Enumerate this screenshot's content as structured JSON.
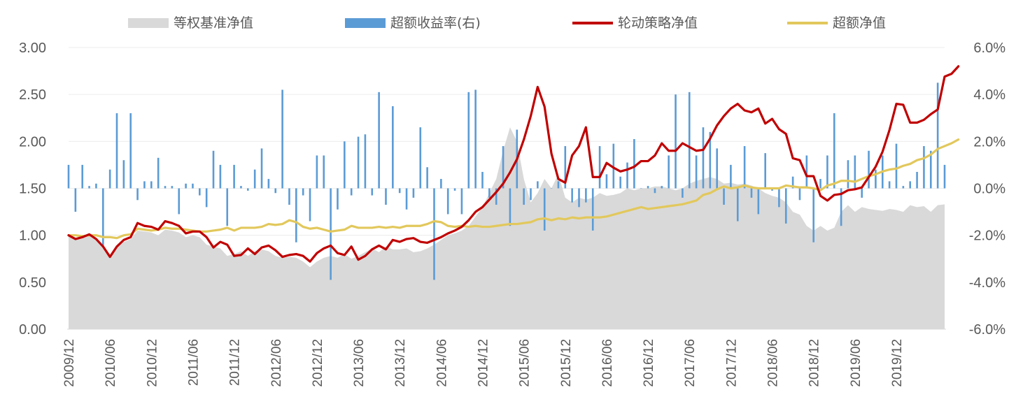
{
  "chart_data": {
    "type": "combo",
    "legend": [
      {
        "name": "等权基准净值",
        "kind": "area",
        "color": "#d9d9d9"
      },
      {
        "name": "超额收益率(右)",
        "kind": "bar",
        "color": "#5b9bd5"
      },
      {
        "name": "轮动策略净值",
        "kind": "line",
        "color": "#c00000"
      },
      {
        "name": "超额净值",
        "kind": "line",
        "color": "#e2c85c"
      }
    ],
    "legend_position": "top",
    "y_left": {
      "min": 0,
      "max": 3,
      "ticks": [
        "0.00",
        "0.50",
        "1.00",
        "1.50",
        "2.00",
        "2.50",
        "3.00"
      ]
    },
    "y_right": {
      "min": -6,
      "max": 6,
      "ticks": [
        "-6.0%",
        "-4.0%",
        "-2.0%",
        "0.0%",
        "2.0%",
        "4.0%",
        "6.0%"
      ]
    },
    "x_tick_labels": [
      "2009/12",
      "2010/06",
      "2010/12",
      "2011/06",
      "2011/12",
      "2012/06",
      "2012/12",
      "2013/06",
      "2013/12",
      "2014/06",
      "2014/12",
      "2015/06",
      "2015/12",
      "2016/06",
      "2016/12",
      "2017/06",
      "2017/12",
      "2018/06",
      "2018/12",
      "2019/06",
      "2019/12"
    ],
    "start_month": "2009/12",
    "grid": true,
    "series": [
      {
        "name": "等权基准净值",
        "axis": "left",
        "type": "area",
        "color": "#d9d9d9",
        "values": [
          1.0,
          0.97,
          0.99,
          1.0,
          0.95,
          0.87,
          0.78,
          0.88,
          0.93,
          0.96,
          1.05,
          1.04,
          1.03,
          1.0,
          1.06,
          1.05,
          1.03,
          0.98,
          1.0,
          0.98,
          0.9,
          0.88,
          0.86,
          0.78,
          0.8,
          0.83,
          0.78,
          0.83,
          0.85,
          0.83,
          0.78,
          0.76,
          0.77,
          0.76,
          0.72,
          0.66,
          0.72,
          0.76,
          0.78,
          0.76,
          0.8,
          0.75,
          0.78,
          0.82,
          0.86,
          0.82,
          0.88,
          0.85,
          0.85,
          0.86,
          0.82,
          0.83,
          0.86,
          0.9,
          0.95,
          1.0,
          1.02,
          1.05,
          1.1,
          1.2,
          1.3,
          1.45,
          1.6,
          1.9,
          2.15,
          2.0,
          1.6,
          1.35,
          1.45,
          1.6,
          1.5,
          1.65,
          1.4,
          1.35,
          1.4,
          1.38,
          1.4,
          1.45,
          1.42,
          1.43,
          1.45,
          1.5,
          1.48,
          1.5,
          1.5,
          1.52,
          1.52,
          1.5,
          1.48,
          1.5,
          1.55,
          1.58,
          1.6,
          1.62,
          1.6,
          1.55,
          1.56,
          1.54,
          1.55,
          1.53,
          1.5,
          1.45,
          1.42,
          1.4,
          1.35,
          1.25,
          1.22,
          1.1,
          1.05,
          1.1,
          1.05,
          1.08,
          1.25,
          1.32,
          1.25,
          1.3,
          1.28,
          1.27,
          1.26,
          1.28,
          1.27,
          1.25,
          1.32,
          1.3,
          1.31,
          1.25,
          1.32,
          1.33
        ]
      },
      {
        "name": "超额收益率(右)",
        "axis": "right",
        "type": "bar",
        "color": "#5b9bd5",
        "values": [
          1.0,
          -1.0,
          1.0,
          0.1,
          0.2,
          -2.5,
          0.8,
          3.2,
          1.2,
          3.2,
          -0.5,
          0.3,
          0.3,
          1.3,
          0.1,
          0.1,
          -1.1,
          0.2,
          0.2,
          -0.3,
          -0.8,
          1.6,
          1.0,
          -1.6,
          1.0,
          0.1,
          -0.1,
          0.8,
          1.7,
          0.4,
          -0.2,
          4.2,
          -0.7,
          -2.3,
          -0.3,
          -1.4,
          1.4,
          1.4,
          -3.9,
          -0.9,
          2.0,
          -0.3,
          2.2,
          2.3,
          -0.3,
          4.1,
          -0.7,
          3.5,
          -0.2,
          -0.9,
          -0.4,
          2.6,
          0.9,
          -3.9,
          0.4,
          -1.1,
          -0.1,
          -1.1,
          4.1,
          4.2,
          0.7,
          -0.4,
          -0.7,
          1.8,
          -1.6,
          2.5,
          -0.7,
          -0.5,
          0.3,
          -1.8,
          0.0,
          0.3,
          1.8,
          -0.6,
          -0.8,
          -0.6,
          -1.8,
          1.8,
          0.6,
          1.9,
          0.5,
          1.1,
          2.1,
          0.0,
          0.1,
          -0.2,
          0.1,
          1.4,
          4.0,
          -0.4,
          4.1,
          1.4,
          2.6,
          2.4,
          1.7,
          -0.7,
          1.0,
          -1.4,
          1.8,
          -0.4,
          -1.1,
          1.5,
          -0.1,
          -0.8,
          -1.5,
          0.5,
          -0.5,
          1.4,
          -2.3,
          0.4,
          1.4,
          3.2,
          -1.6,
          1.2,
          1.4,
          -0.4,
          1.6,
          0.8,
          1.4,
          0.3,
          1.9,
          0.1,
          0.3,
          0.7,
          1.8,
          1.6,
          4.5,
          1.0
        ]
      },
      {
        "name": "轮动策略净值",
        "axis": "left",
        "type": "line",
        "color": "#c00000",
        "values": [
          1.0,
          0.96,
          0.98,
          1.01,
          0.96,
          0.88,
          0.77,
          0.88,
          0.95,
          0.98,
          1.13,
          1.1,
          1.09,
          1.06,
          1.15,
          1.13,
          1.1,
          1.02,
          1.04,
          1.04,
          0.98,
          0.87,
          0.93,
          0.9,
          0.78,
          0.79,
          0.86,
          0.8,
          0.87,
          0.89,
          0.84,
          0.77,
          0.79,
          0.8,
          0.78,
          0.72,
          0.81,
          0.86,
          0.89,
          0.81,
          0.79,
          0.88,
          0.74,
          0.78,
          0.85,
          0.89,
          0.85,
          0.95,
          0.93,
          0.96,
          0.97,
          0.93,
          0.92,
          0.95,
          0.98,
          1.02,
          1.05,
          1.09,
          1.16,
          1.25,
          1.3,
          1.38,
          1.46,
          1.55,
          1.67,
          1.81,
          2.02,
          2.27,
          2.58,
          2.37,
          1.87,
          1.6,
          1.56,
          1.85,
          1.95,
          2.15,
          1.62,
          1.62,
          1.77,
          1.72,
          1.68,
          1.7,
          1.73,
          1.79,
          1.79,
          1.85,
          1.98,
          1.9,
          1.9,
          1.98,
          1.94,
          1.9,
          1.91,
          2.03,
          2.17,
          2.27,
          2.35,
          2.4,
          2.33,
          2.31,
          2.35,
          2.19,
          2.24,
          2.13,
          2.08,
          1.82,
          1.8,
          1.63,
          1.63,
          1.42,
          1.37,
          1.43,
          1.44,
          1.48,
          1.49,
          1.51,
          1.62,
          1.73,
          1.89,
          2.12,
          2.4,
          2.39,
          2.2,
          2.2,
          2.23,
          2.29,
          2.34,
          2.69,
          2.72,
          2.8
        ]
      },
      {
        "name": "超额净值",
        "axis": "left",
        "type": "line",
        "color": "#e2c85c",
        "values": [
          1.0,
          1.0,
          0.99,
          1.0,
          1.0,
          0.98,
          0.98,
          0.97,
          1.0,
          1.01,
          1.07,
          1.06,
          1.05,
          1.06,
          1.08,
          1.07,
          1.07,
          1.06,
          1.05,
          1.04,
          1.04,
          1.05,
          1.06,
          1.08,
          1.05,
          1.08,
          1.08,
          1.08,
          1.09,
          1.12,
          1.11,
          1.12,
          1.16,
          1.14,
          1.09,
          1.07,
          1.08,
          1.06,
          1.04,
          1.05,
          1.06,
          1.1,
          1.08,
          1.08,
          1.08,
          1.09,
          1.08,
          1.09,
          1.08,
          1.1,
          1.1,
          1.1,
          1.12,
          1.15,
          1.14,
          1.1,
          1.09,
          1.1,
          1.09,
          1.1,
          1.09,
          1.09,
          1.1,
          1.11,
          1.12,
          1.12,
          1.13,
          1.14,
          1.17,
          1.18,
          1.16,
          1.18,
          1.17,
          1.19,
          1.18,
          1.19,
          1.19,
          1.19,
          1.2,
          1.22,
          1.24,
          1.26,
          1.28,
          1.3,
          1.28,
          1.29,
          1.3,
          1.31,
          1.32,
          1.33,
          1.35,
          1.37,
          1.43,
          1.45,
          1.49,
          1.52,
          1.5,
          1.51,
          1.53,
          1.51,
          1.5,
          1.5,
          1.5,
          1.5,
          1.53,
          1.52,
          1.51,
          1.51,
          1.5,
          1.48,
          1.53,
          1.55,
          1.58,
          1.58,
          1.57,
          1.6,
          1.63,
          1.65,
          1.68,
          1.7,
          1.71,
          1.74,
          1.76,
          1.8,
          1.82,
          1.86,
          1.92,
          1.95,
          1.98,
          2.02
        ]
      }
    ]
  }
}
